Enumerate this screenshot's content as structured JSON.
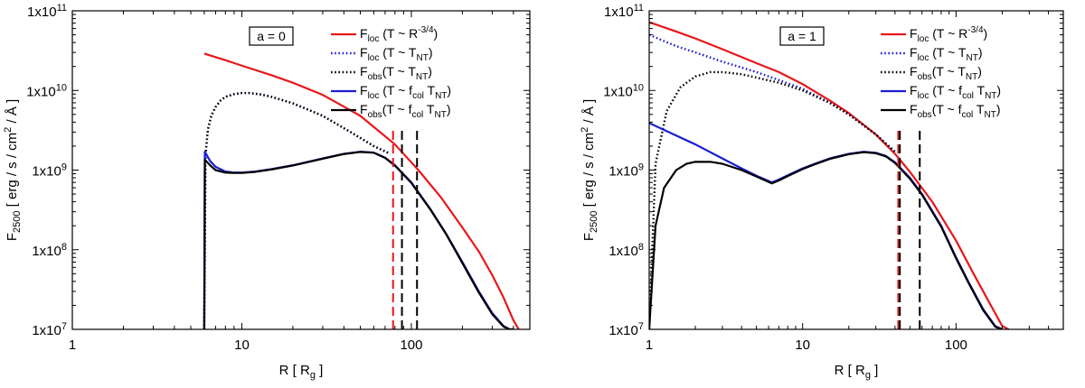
{
  "chart_data": [
    {
      "type": "line",
      "annotation": "a = 0",
      "xlabel": "R [ Rg ]",
      "ylabel": "F2500 [ erg / s / cm2 / Å ]",
      "xscale": "log",
      "yscale": "log",
      "xlim": [
        1,
        500
      ],
      "ylim": [
        10000000,
        100000000000
      ],
      "x_ticks": [
        1,
        10,
        100
      ],
      "x_tick_labels": [
        "1",
        "10",
        "100"
      ],
      "y_ticks": [
        10000000,
        100000000,
        1000000000,
        10000000000,
        100000000000
      ],
      "y_tick_labels": [
        {
          "base": "1x10",
          "exp": "7"
        },
        {
          "base": "1x10",
          "exp": "8"
        },
        {
          "base": "1x10",
          "exp": "9"
        },
        {
          "base": "1x10",
          "exp": "10"
        },
        {
          "base": "1x10",
          "exp": "11"
        }
      ],
      "legend_position": "top-right",
      "series": [
        {
          "name": "Floc (T ~ R-3/4)",
          "color": "#e8171b",
          "style": "solid",
          "x": [
            6,
            8,
            10,
            15,
            20,
            30,
            50,
            80,
            110,
            150,
            200,
            250,
            300,
            350,
            400,
            430
          ],
          "y": [
            29000000000,
            24000000000,
            20500000000,
            15500000000,
            12500000000,
            8800000000,
            4800000000,
            2100000000,
            1000000000,
            450000000,
            190000000,
            95000000,
            48000000,
            25000000,
            13000000,
            10000000
          ]
        },
        {
          "name": "Floc (T ~ TNT)",
          "color": "#1c1cd6",
          "style": "dotted",
          "x": [
            6,
            6.1,
            6.3,
            6.6,
            7,
            7.5,
            8,
            9,
            10,
            11,
            13,
            15,
            20,
            30,
            45,
            60,
            75
          ],
          "y": [
            10000000,
            1500000000,
            3200000000,
            4800000000,
            6200000000,
            7500000000,
            8300000000,
            9000000000,
            9300000000,
            9300000000,
            8900000000,
            8300000000,
            6900000000,
            4800000000,
            2900000000,
            2000000000,
            1600000000
          ]
        },
        {
          "name": "Fobs(T ~ TNT)",
          "color": "#000000",
          "style": "dotted",
          "x": [
            6,
            6.1,
            6.3,
            6.6,
            7,
            7.5,
            8,
            9,
            10,
            11,
            13,
            15,
            20,
            30,
            45,
            60,
            75
          ],
          "y": [
            10000000,
            1500000000,
            3200000000,
            4800000000,
            6200000000,
            7500000000,
            8300000000,
            9000000000,
            9300000000,
            9300000000,
            8900000000,
            8300000000,
            6900000000,
            4800000000,
            2900000000,
            2000000000,
            1600000000
          ]
        },
        {
          "name": "Floc (T ~ fcol TNT)",
          "color": "#1c1cd6",
          "style": "solid",
          "x": [
            6,
            6.05,
            6.5,
            7,
            8,
            9,
            10,
            12,
            15,
            20,
            30,
            40,
            50,
            60,
            70,
            80,
            100,
            130,
            160,
            200,
            250,
            300,
            350,
            380,
            400
          ],
          "y": [
            10000000,
            1700000000,
            1300000000,
            1100000000,
            960000000,
            930000000,
            930000000,
            960000000,
            1030000000,
            1150000000,
            1400000000,
            1600000000,
            1700000000,
            1660000000,
            1430000000,
            1150000000,
            700000000,
            320000000,
            160000000,
            70000000,
            30000000,
            16000000,
            11000000,
            10000000,
            10000000
          ]
        },
        {
          "name": "Fobs(T ~ fcol TNT)",
          "color": "#000000",
          "style": "solid",
          "x": [
            6,
            6.05,
            6.5,
            7,
            8,
            9,
            10,
            12,
            15,
            20,
            30,
            40,
            50,
            60,
            70,
            80,
            100,
            130,
            160,
            200,
            250,
            300,
            350,
            380,
            400
          ],
          "y": [
            10000000,
            1350000000,
            1150000000,
            1000000000,
            930000000,
            920000000,
            920000000,
            950000000,
            1020000000,
            1140000000,
            1390000000,
            1590000000,
            1690000000,
            1650000000,
            1420000000,
            1140000000,
            690000000,
            315000000,
            158000000,
            68000000,
            29000000,
            15500000,
            10800000,
            10000000,
            10000000
          ]
        }
      ],
      "vertical_lines": [
        {
          "x": 78,
          "color": "#e8171b",
          "style": "dashed",
          "ymax": 3500000000
        },
        {
          "x": 88,
          "color": "#000000",
          "style": "dashed",
          "ymax": 3500000000
        },
        {
          "x": 108,
          "color": "#000000",
          "style": "dashed",
          "ymax": 3500000000
        }
      ]
    },
    {
      "type": "line",
      "annotation": "a = 1",
      "xlabel": "R [ Rg ]",
      "ylabel": "F2500 [ erg / s / cm2 / Å ]",
      "xscale": "log",
      "yscale": "log",
      "xlim": [
        1,
        500
      ],
      "ylim": [
        10000000,
        100000000000
      ],
      "x_ticks": [
        1,
        10,
        100
      ],
      "x_tick_labels": [
        "1",
        "10",
        "100"
      ],
      "y_ticks": [
        10000000,
        100000000,
        1000000000,
        10000000000,
        100000000000
      ],
      "y_tick_labels": [
        {
          "base": "1x10",
          "exp": "7"
        },
        {
          "base": "1x10",
          "exp": "8"
        },
        {
          "base": "1x10",
          "exp": "9"
        },
        {
          "base": "1x10",
          "exp": "10"
        },
        {
          "base": "1x10",
          "exp": "11"
        }
      ],
      "legend_position": "top-right",
      "series": [
        {
          "name": "Floc (T ~ R-3/4)",
          "color": "#e8171b",
          "style": "solid",
          "x": [
            1,
            1.5,
            2,
            3,
            5,
            7,
            10,
            15,
            20,
            30,
            40,
            50,
            70,
            100,
            130,
            160,
            200,
            220
          ],
          "y": [
            72000000000,
            55000000000,
            45000000000,
            33000000000,
            22000000000,
            17000000000,
            12000000000,
            7500000000,
            5200000000,
            2800000000,
            1600000000,
            950000000,
            400000000,
            130000000,
            50000000,
            24000000,
            11000000,
            10000000
          ]
        },
        {
          "name": "Floc (T ~ TNT)",
          "color": "#1c1cd6",
          "style": "dotted",
          "x": [
            1,
            1.5,
            2,
            3,
            5,
            7,
            10,
            15,
            20,
            30,
            40
          ],
          "y": [
            50000000000,
            36000000000,
            30000000000,
            23000000000,
            17000000000,
            13500000000,
            10500000000,
            7000000000,
            5000000000,
            2800000000,
            1700000000
          ]
        },
        {
          "name": "Fobs(T ~ TNT)",
          "color": "#000000",
          "style": "dotted",
          "x": [
            1,
            1.1,
            1.3,
            1.6,
            2,
            2.5,
            3,
            4,
            5,
            7,
            10,
            15,
            20,
            30,
            40
          ],
          "y": [
            10000000,
            1200000000,
            5500000000,
            11000000000,
            15000000000,
            17000000000,
            17000000000,
            16000000000,
            14500000000,
            12500000000,
            10000000000,
            7000000000,
            5000000000,
            2800000000,
            1700000000
          ]
        },
        {
          "name": "Floc (T ~ fcol TNT)",
          "color": "#1c1cd6",
          "style": "solid",
          "x": [
            1,
            2,
            3,
            4,
            5,
            6.3,
            7,
            8,
            10,
            12,
            15,
            20,
            25,
            30,
            35,
            40,
            50,
            60,
            80,
            100,
            120,
            150,
            180,
            200
          ],
          "y": [
            3900000000,
            2100000000,
            1400000000,
            1050000000,
            850000000,
            700000000,
            760000000,
            860000000,
            1050000000,
            1200000000,
            1400000000,
            1600000000,
            1700000000,
            1650000000,
            1500000000,
            1250000000,
            800000000,
            500000000,
            200000000,
            80000000,
            40000000,
            18000000,
            11000000,
            10000000
          ]
        },
        {
          "name": "Fobs(T ~ fcol TNT)",
          "color": "#000000",
          "style": "solid",
          "x": [
            1,
            1.1,
            1.25,
            1.5,
            1.75,
            2,
            2.5,
            3,
            4,
            5,
            6.3,
            7,
            8,
            10,
            12,
            15,
            20,
            25,
            30,
            35,
            40,
            50,
            60,
            80,
            100,
            120,
            150,
            180,
            200
          ],
          "y": [
            10000000,
            200000000,
            600000000,
            1000000000,
            1200000000,
            1270000000,
            1270000000,
            1200000000,
            1000000000,
            830000000,
            680000000,
            740000000,
            840000000,
            1030000000,
            1180000000,
            1380000000,
            1580000000,
            1680000000,
            1630000000,
            1480000000,
            1230000000,
            780000000,
            490000000,
            195000000,
            78000000,
            39000000,
            17500000,
            10800000,
            10000000
          ]
        }
      ],
      "vertical_lines": [
        {
          "x": 42,
          "color": "#e8171b",
          "style": "dashed",
          "ymax": 3500000000
        },
        {
          "x": 43,
          "color": "#000000",
          "style": "dashed",
          "ymax": 3500000000
        },
        {
          "x": 58,
          "color": "#000000",
          "style": "dashed",
          "ymax": 3500000000
        }
      ]
    }
  ],
  "legend_labels": [
    {
      "main": "F",
      "sub": "loc",
      "rest": " (T ~ R",
      "sup": "-3/4",
      "end": ")"
    },
    {
      "main": "F",
      "sub": "loc",
      "rest": " (T ~ T",
      "sub2": "NT",
      "end": ")"
    },
    {
      "main": "F",
      "sub": "obs",
      "rest": "(T ~ T",
      "sub2": "NT",
      "end": ")"
    },
    {
      "main": "F",
      "sub": "loc",
      "rest": " (T ~ f",
      "sub2": "col",
      "mid": " T",
      "sub3": "NT",
      "end": ")"
    },
    {
      "main": "F",
      "sub": "obs",
      "rest": "(T ~ f",
      "sub2": "col",
      "mid": " T",
      "sub3": "NT",
      "end": ")"
    }
  ]
}
